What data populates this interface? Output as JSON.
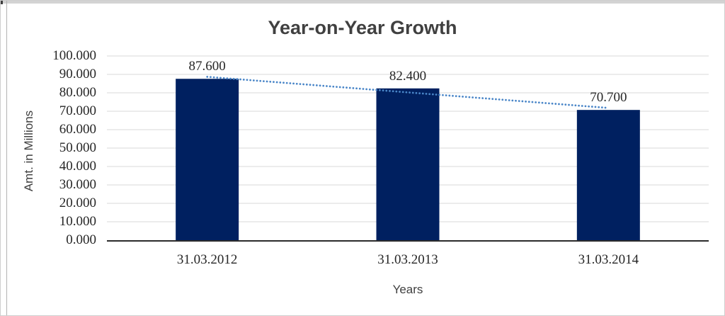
{
  "chart_data": {
    "type": "bar",
    "title": "Year-on-Year Growth",
    "xlabel": "Years",
    "ylabel": "Amt. in Millions",
    "categories": [
      "31.03.2012",
      "31.03.2013",
      "31.03.2014"
    ],
    "values": [
      87.6,
      82.4,
      70.7
    ],
    "data_labels": [
      "87.600",
      "82.400",
      "70.700"
    ],
    "ytick_labels": [
      "100.000",
      "90.000",
      "80.000",
      "70.000",
      "60.000",
      "50.000",
      "40.000",
      "30.000",
      "20.000",
      "10.000",
      "0.000"
    ],
    "ylim": [
      0,
      100
    ],
    "ytick_step": 10,
    "grid": true,
    "legend": "none",
    "trendline": {
      "type": "linear",
      "style": "dotted"
    },
    "colors": {
      "bar": "#002060",
      "trendline": "#4a86c8",
      "gridline": "#d9d9d9",
      "axis_line": "#2b2b2b",
      "tick_text": "#262626",
      "title_text": "#404040"
    }
  }
}
